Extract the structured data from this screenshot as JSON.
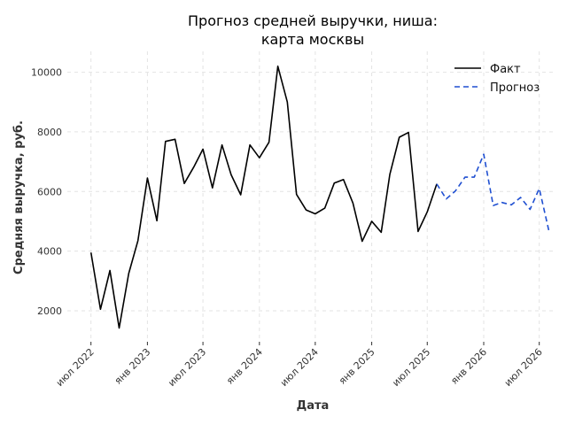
{
  "chart_data": {
    "type": "line",
    "title_lines": [
      "Прогноз средней выручки, ниша:",
      "карта москвы"
    ],
    "xlabel": "Дата",
    "ylabel": "Средняя выручка, руб.",
    "x_range": [
      "2022-04-15",
      "2026-08-20"
    ],
    "ylim": [
      900,
      10700
    ],
    "y_ticks": [
      2000,
      4000,
      6000,
      8000,
      10000
    ],
    "x_ticks": [
      {
        "date": "2022-07-01",
        "label": "июл 2022"
      },
      {
        "date": "2023-01-01",
        "label": "янв 2023"
      },
      {
        "date": "2023-07-01",
        "label": "июл 2023"
      },
      {
        "date": "2024-01-01",
        "label": "янв 2024"
      },
      {
        "date": "2024-07-01",
        "label": "июл 2024"
      },
      {
        "date": "2025-01-01",
        "label": "янв 2025"
      },
      {
        "date": "2025-07-01",
        "label": "июл 2025"
      },
      {
        "date": "2026-01-01",
        "label": "янв 2026"
      },
      {
        "date": "2026-07-01",
        "label": "июл 2026"
      }
    ],
    "grid": true,
    "legend_position": "top-right",
    "series": [
      {
        "name": "Факт",
        "color": "#000000",
        "style": "solid",
        "x": [
          "2022-07-01",
          "2022-08-01",
          "2022-09-01",
          "2022-10-01",
          "2022-11-01",
          "2022-12-01",
          "2023-01-01",
          "2023-02-01",
          "2023-03-01",
          "2023-04-01",
          "2023-05-01",
          "2023-06-01",
          "2023-07-01",
          "2023-08-01",
          "2023-09-01",
          "2023-10-01",
          "2023-11-01",
          "2023-12-01",
          "2024-01-01",
          "2024-02-01",
          "2024-03-01",
          "2024-04-01",
          "2024-05-01",
          "2024-06-01",
          "2024-07-01",
          "2024-08-01",
          "2024-09-01",
          "2024-10-01",
          "2024-11-01",
          "2024-12-01",
          "2025-01-01",
          "2025-02-01",
          "2025-03-01",
          "2025-04-01",
          "2025-05-01",
          "2025-06-01",
          "2025-07-01",
          "2025-08-01"
        ],
        "values": [
          3950,
          2050,
          3350,
          1420,
          3250,
          4350,
          6450,
          5020,
          7680,
          7750,
          6270,
          6820,
          7420,
          6120,
          7560,
          6560,
          5890,
          7560,
          7130,
          7650,
          10200,
          9000,
          5900,
          5380,
          5250,
          5440,
          6280,
          6400,
          5610,
          4330,
          5000,
          4630,
          6570,
          7820,
          7980,
          4660,
          5320,
          6250
        ]
      },
      {
        "name": "Прогноз",
        "color": "#1f4fd1",
        "style": "dashed",
        "x": [
          "2025-08-01",
          "2025-09-01",
          "2025-10-01",
          "2025-11-01",
          "2025-12-01",
          "2026-01-01",
          "2026-02-01",
          "2026-03-01",
          "2026-04-01",
          "2026-05-01",
          "2026-06-01",
          "2026-07-01",
          "2026-08-01"
        ],
        "values": [
          6250,
          5750,
          6020,
          6480,
          6480,
          7250,
          5530,
          5630,
          5550,
          5800,
          5400,
          6100,
          4700
        ]
      }
    ]
  }
}
